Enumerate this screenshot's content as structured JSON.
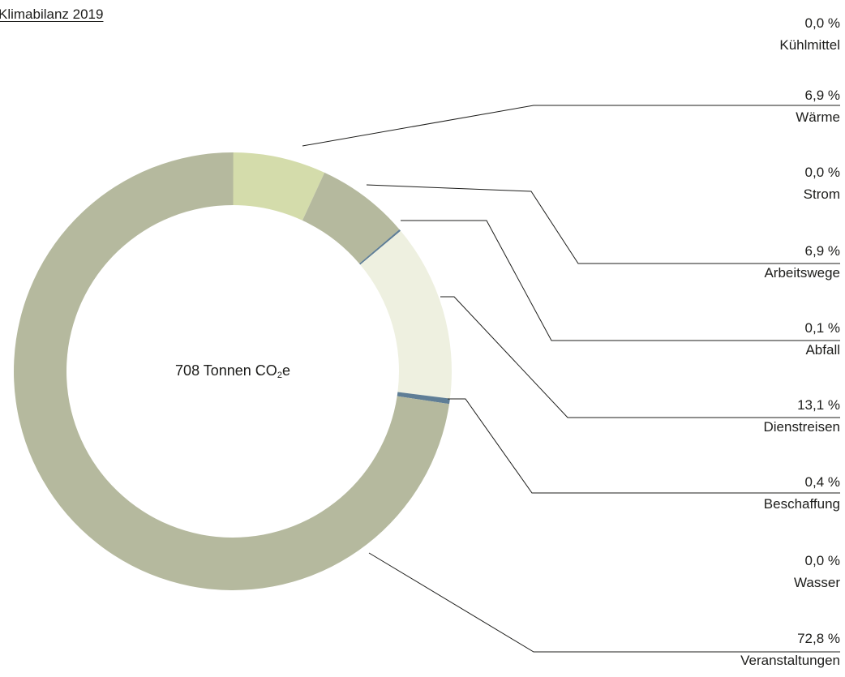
{
  "title": "Klimabilanz 2019",
  "center": {
    "value": "708 Tonnen CO",
    "sub": "2",
    "suffix": "e"
  },
  "colors": {
    "waerme": "#d4dcab",
    "arbeitswege": "#b5b99e",
    "abfall": "#5f7e96",
    "dienstreisen": "#eef0e0",
    "beschaffung": "#5f7e96",
    "veranstaltungen": "#b5b99e",
    "leader": "#1d1d1b"
  },
  "chart_data": {
    "type": "pie",
    "variant": "donut",
    "title": "Klimabilanz 2019",
    "center_text": "708 Tonnen CO2e",
    "legend_position": "right",
    "unit": "%",
    "categories": [
      "Kühlmittel",
      "Wärme",
      "Strom",
      "Arbeitswege",
      "Abfall",
      "Dienstreisen",
      "Beschaffung",
      "Wasser",
      "Veranstaltungen"
    ],
    "values": [
      0.0,
      6.9,
      0.0,
      6.9,
      0.1,
      13.1,
      0.4,
      0.0,
      72.8
    ],
    "value_labels": [
      "0,0 %",
      "6,9 %",
      "0,0 %",
      "6,9 %",
      "0,1 %",
      "13,1 %",
      "0,4 %",
      "0,0 %",
      "72,8 %"
    ],
    "slice_keys": [
      "kuehlmittel",
      "waerme",
      "strom",
      "arbeitswege",
      "abfall",
      "dienstreisen",
      "beschaffung",
      "wasser",
      "veranstaltungen"
    ]
  }
}
